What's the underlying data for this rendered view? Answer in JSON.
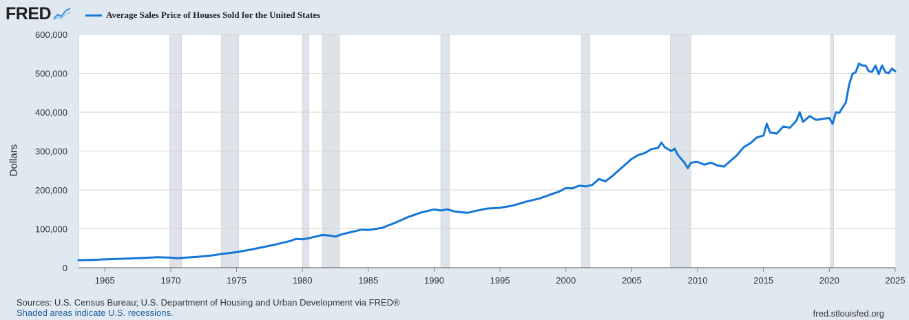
{
  "brand": {
    "logo_text": "FRED"
  },
  "chart_data": {
    "type": "line",
    "title": "",
    "ylabel": "Dollars",
    "xlabel": "",
    "ylim": [
      0,
      600000
    ],
    "xlim": [
      1963.0,
      2025.0
    ],
    "grid": true,
    "legend_position": "top-left",
    "series": [
      {
        "name": "Average Sales Price of Houses Sold for the United States",
        "color": "#1476d8",
        "points": [
          [
            1963.0,
            19300
          ],
          [
            1964.0,
            20000
          ],
          [
            1965.0,
            21400
          ],
          [
            1966.0,
            22500
          ],
          [
            1967.0,
            23900
          ],
          [
            1968.0,
            25200
          ],
          [
            1969.0,
            26900
          ],
          [
            1970.0,
            25900
          ],
          [
            1970.5,
            24500
          ],
          [
            1971.0,
            25700
          ],
          [
            1972.0,
            28000
          ],
          [
            1973.0,
            31000
          ],
          [
            1974.0,
            36000
          ],
          [
            1975.0,
            40000
          ],
          [
            1976.0,
            46000
          ],
          [
            1977.0,
            53000
          ],
          [
            1978.0,
            60000
          ],
          [
            1979.0,
            68000
          ],
          [
            1979.5,
            74000
          ],
          [
            1980.0,
            73000
          ],
          [
            1980.5,
            76000
          ],
          [
            1981.0,
            80000
          ],
          [
            1981.5,
            84000
          ],
          [
            1982.0,
            83000
          ],
          [
            1982.5,
            80000
          ],
          [
            1983.0,
            86000
          ],
          [
            1984.0,
            94000
          ],
          [
            1984.5,
            98000
          ],
          [
            1985.0,
            97000
          ],
          [
            1986.0,
            102000
          ],
          [
            1987.0,
            115000
          ],
          [
            1988.0,
            130000
          ],
          [
            1988.5,
            136000
          ],
          [
            1989.0,
            142000
          ],
          [
            1990.0,
            150000
          ],
          [
            1990.5,
            147000
          ],
          [
            1991.0,
            150000
          ],
          [
            1991.5,
            145000
          ],
          [
            1992.0,
            143000
          ],
          [
            1992.5,
            141000
          ],
          [
            1993.0,
            145000
          ],
          [
            1994.0,
            152000
          ],
          [
            1995.0,
            154000
          ],
          [
            1996.0,
            160000
          ],
          [
            1997.0,
            170000
          ],
          [
            1998.0,
            178000
          ],
          [
            1999.0,
            190000
          ],
          [
            1999.5,
            196000
          ],
          [
            2000.0,
            205000
          ],
          [
            2000.5,
            204000
          ],
          [
            2001.0,
            211000
          ],
          [
            2001.5,
            209000
          ],
          [
            2002.0,
            213000
          ],
          [
            2002.5,
            228000
          ],
          [
            2003.0,
            222000
          ],
          [
            2003.5,
            235000
          ],
          [
            2004.0,
            250000
          ],
          [
            2004.5,
            265000
          ],
          [
            2005.0,
            280000
          ],
          [
            2005.5,
            290000
          ],
          [
            2006.0,
            295000
          ],
          [
            2006.5,
            305000
          ],
          [
            2007.0,
            308000
          ],
          [
            2007.25,
            322000
          ],
          [
            2007.5,
            310000
          ],
          [
            2008.0,
            300000
          ],
          [
            2008.25,
            306000
          ],
          [
            2008.5,
            290000
          ],
          [
            2009.0,
            270000
          ],
          [
            2009.25,
            256000
          ],
          [
            2009.5,
            270000
          ],
          [
            2010.0,
            272000
          ],
          [
            2010.5,
            265000
          ],
          [
            2011.0,
            270000
          ],
          [
            2011.5,
            263000
          ],
          [
            2012.0,
            260000
          ],
          [
            2012.5,
            275000
          ],
          [
            2013.0,
            290000
          ],
          [
            2013.5,
            310000
          ],
          [
            2014.0,
            320000
          ],
          [
            2014.5,
            335000
          ],
          [
            2015.0,
            340000
          ],
          [
            2015.25,
            370000
          ],
          [
            2015.5,
            348000
          ],
          [
            2016.0,
            345000
          ],
          [
            2016.5,
            363000
          ],
          [
            2017.0,
            360000
          ],
          [
            2017.5,
            378000
          ],
          [
            2017.75,
            400000
          ],
          [
            2018.0,
            375000
          ],
          [
            2018.5,
            390000
          ],
          [
            2019.0,
            380000
          ],
          [
            2019.5,
            383000
          ],
          [
            2020.0,
            385000
          ],
          [
            2020.25,
            370000
          ],
          [
            2020.5,
            400000
          ],
          [
            2020.75,
            398000
          ],
          [
            2021.0,
            412000
          ],
          [
            2021.25,
            425000
          ],
          [
            2021.5,
            470000
          ],
          [
            2021.75,
            498000
          ],
          [
            2022.0,
            503000
          ],
          [
            2022.25,
            525000
          ],
          [
            2022.5,
            520000
          ],
          [
            2022.75,
            520000
          ],
          [
            2023.0,
            505000
          ],
          [
            2023.25,
            504000
          ],
          [
            2023.5,
            520000
          ],
          [
            2023.75,
            498000
          ],
          [
            2024.0,
            520000
          ],
          [
            2024.25,
            503000
          ],
          [
            2024.5,
            500000
          ],
          [
            2024.75,
            512000
          ],
          [
            2025.0,
            505000
          ]
        ]
      }
    ],
    "recessions": [
      [
        1969.92,
        1970.83
      ],
      [
        1973.83,
        1975.17
      ],
      [
        1980.0,
        1980.5
      ],
      [
        1981.5,
        1982.83
      ],
      [
        1990.5,
        1991.17
      ],
      [
        2001.17,
        2001.83
      ],
      [
        2007.92,
        2009.5
      ],
      [
        2020.08,
        2020.33
      ]
    ],
    "y_ticks": [
      0,
      100000,
      200000,
      300000,
      400000,
      500000,
      600000
    ],
    "y_tick_labels": [
      "0",
      "100,000",
      "200,000",
      "300,000",
      "400,000",
      "500,000",
      "600,000"
    ],
    "x_ticks": [
      1965,
      1970,
      1975,
      1980,
      1985,
      1990,
      1995,
      2000,
      2005,
      2010,
      2015,
      2020,
      2025
    ],
    "x_tick_labels": [
      "1965",
      "1970",
      "1975",
      "1980",
      "1985",
      "1990",
      "1995",
      "2000",
      "2005",
      "2010",
      "2015",
      "2020",
      "2025"
    ],
    "colors": {
      "line": "#1476d8",
      "recession": "#dde3e9",
      "plot_bg": "#ffffff",
      "grid": "#d3d3d3"
    }
  },
  "footer": {
    "sources": "Sources: U.S. Census Bureau; U.S. Department of Housing and Urban Development via FRED®",
    "shaded_note": "Shaded areas indicate U.S. recessions.",
    "site": "fred.stlouisfed.org"
  }
}
